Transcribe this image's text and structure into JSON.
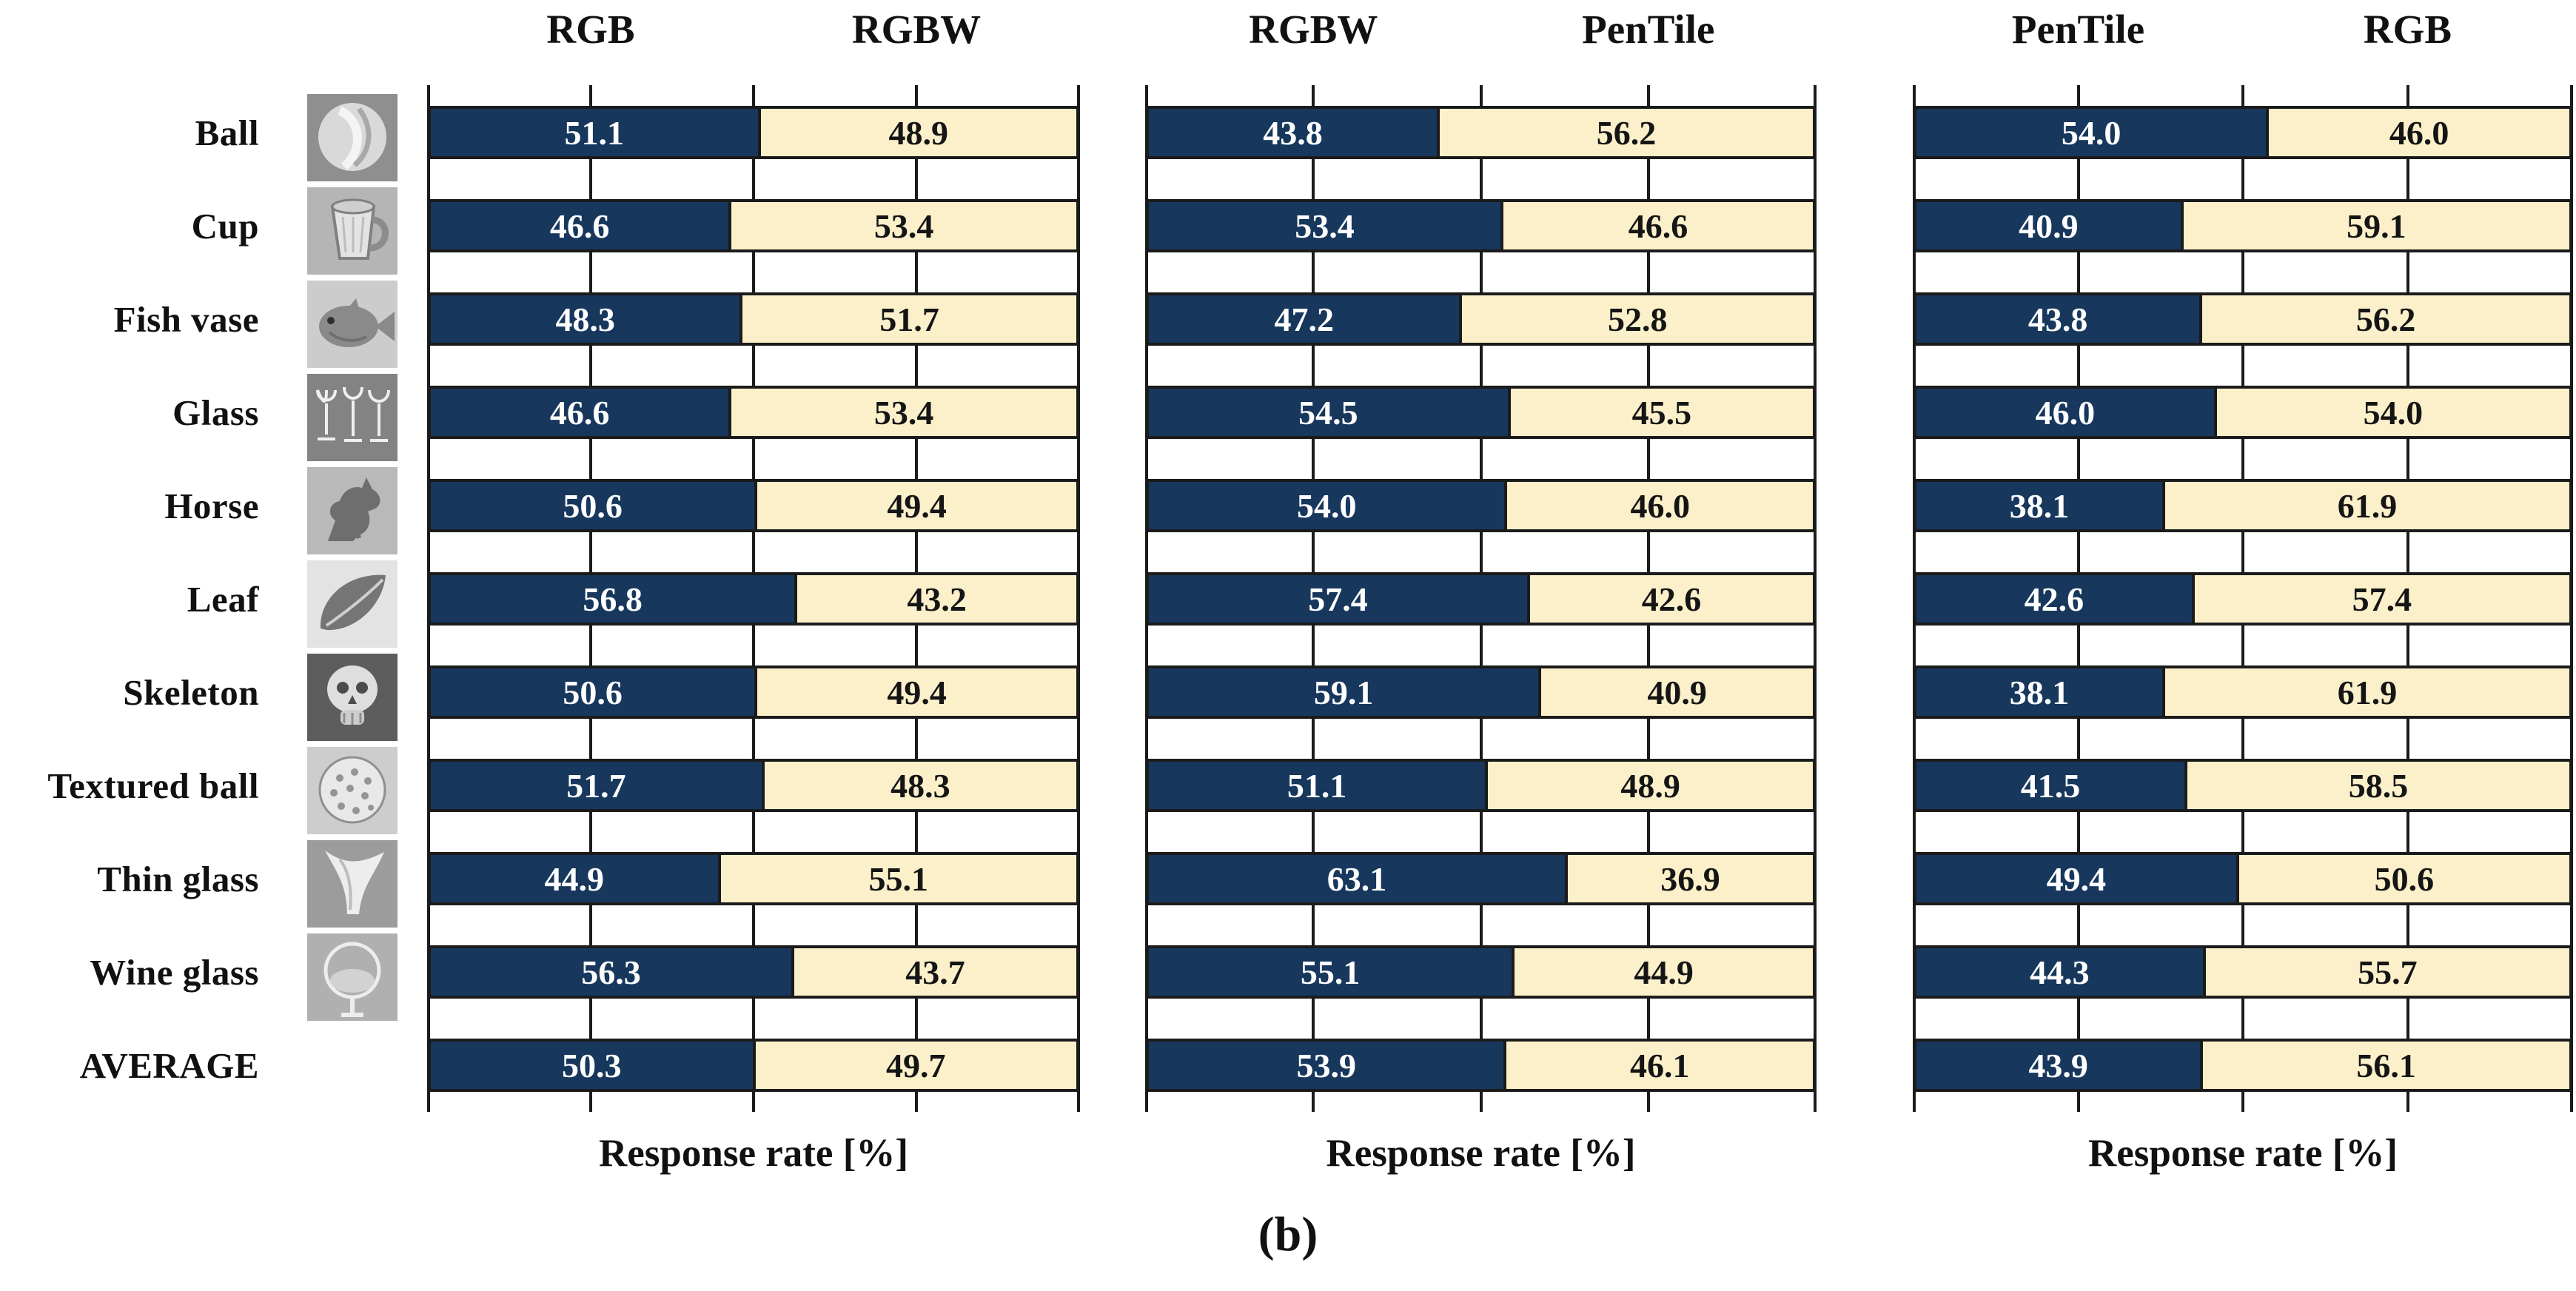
{
  "figure": {
    "caption": "(b)",
    "xlabel": "Response rate [%]"
  },
  "colors": {
    "left_bar_fill": "#17375D",
    "right_bar_fill": "#FBF0CA",
    "bar_border": "#1B1B1B",
    "gridline": "#1B1B1B",
    "left_value_text": "#FFFFFF",
    "right_value_text": "#151515",
    "label_text": "#111111",
    "background": "#FFFFFF"
  },
  "thumbnails": [
    "ball-thumbnail",
    "cup-thumbnail",
    "fish-vase-thumbnail",
    "glass-thumbnail",
    "horse-thumbnail",
    "leaf-thumbnail",
    "skeleton-thumbnail",
    "textured-ball-thumbnail",
    "thin-glass-thumbnail",
    "wine-glass-thumbnail"
  ],
  "chart_data": {
    "type": "bar",
    "subtype": "horizontal-stacked-100pct-paired-comparison",
    "caption": "(b)",
    "xlabel": "Response rate [%]",
    "xlim": [
      0,
      100
    ],
    "gridlines_percent": [
      0,
      25,
      50,
      75,
      100
    ],
    "grid": true,
    "legend_position": "column-headers",
    "categories": [
      "Ball",
      "Cup",
      "Fish vase",
      "Glass",
      "Horse",
      "Leaf",
      "Skeleton",
      "Textured ball",
      "Thin glass",
      "Wine glass",
      "AVERAGE"
    ],
    "panels": [
      {
        "left_label": "RGB",
        "right_label": "RGBW",
        "series": [
          {
            "name": "RGB",
            "values": [
              51.1,
              46.6,
              48.3,
              46.6,
              50.6,
              56.8,
              50.6,
              51.7,
              44.9,
              56.3,
              50.3
            ]
          },
          {
            "name": "RGBW",
            "values": [
              48.9,
              53.4,
              51.7,
              53.4,
              49.4,
              43.2,
              49.4,
              48.3,
              55.1,
              43.7,
              49.7
            ]
          }
        ]
      },
      {
        "left_label": "RGBW",
        "right_label": "PenTile",
        "series": [
          {
            "name": "RGBW",
            "values": [
              43.8,
              53.4,
              47.2,
              54.5,
              54.0,
              57.4,
              59.1,
              51.1,
              63.1,
              55.1,
              53.9
            ]
          },
          {
            "name": "PenTile",
            "values": [
              56.2,
              46.6,
              52.8,
              45.5,
              46.0,
              42.6,
              40.9,
              48.9,
              36.9,
              44.9,
              46.1
            ]
          }
        ]
      },
      {
        "left_label": "PenTile",
        "right_label": "RGB",
        "series": [
          {
            "name": "PenTile",
            "values": [
              54.0,
              40.9,
              43.8,
              46.0,
              38.1,
              42.6,
              38.1,
              41.5,
              49.4,
              44.3,
              43.9
            ]
          },
          {
            "name": "RGB",
            "values": [
              46.0,
              59.1,
              56.2,
              54.0,
              61.9,
              57.4,
              61.9,
              58.5,
              50.6,
              55.7,
              56.1
            ]
          }
        ]
      }
    ]
  }
}
